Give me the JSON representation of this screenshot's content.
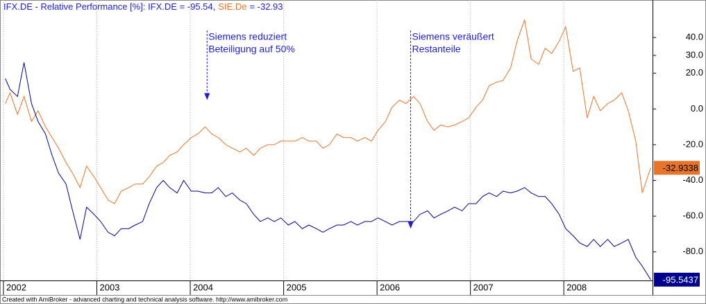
{
  "chart_data": {
    "type": "line",
    "title_parts": [
      {
        "text": "IFX.DE - Relative Performance [%]: IFX.DE = -95.54,",
        "color": "#1f1fd0"
      },
      {
        "text": "SIE.De",
        "color": "#e8742a"
      },
      {
        "text": "= -32.93",
        "color": "#1f1fd0"
      }
    ],
    "footer": "Created with AmiBroker - advanced charting and technical analysis software. http://www.amibroker.com",
    "annotations": [
      {
        "lines": [
          "Siemens reduziert",
          "Beteiligung auf 50%"
        ],
        "x": 2004.18,
        "y": 5
      },
      {
        "lines": [
          "Siemens veräußert",
          "Restanteile"
        ],
        "x": 2006.36,
        "y": -67
      }
    ],
    "x": [
      2002.02,
      2002.07,
      2002.15,
      2002.22,
      2002.3,
      2002.37,
      2002.45,
      2002.52,
      2002.59,
      2002.67,
      2002.74,
      2002.82,
      2002.89,
      2002.97,
      2003.04,
      2003.12,
      2003.19,
      2003.26,
      2003.34,
      2003.41,
      2003.49,
      2003.56,
      2003.64,
      2003.71,
      2003.78,
      2003.86,
      2003.93,
      2004.01,
      2004.08,
      2004.16,
      2004.23,
      2004.3,
      2004.38,
      2004.45,
      2004.53,
      2004.6,
      2004.68,
      2004.75,
      2004.83,
      2004.9,
      2004.97,
      2005.05,
      2005.12,
      2005.2,
      2005.27,
      2005.35,
      2005.42,
      2005.49,
      2005.57,
      2005.64,
      2005.72,
      2005.79,
      2005.87,
      2005.94,
      2006.01,
      2006.09,
      2006.16,
      2006.24,
      2006.31,
      2006.39,
      2006.46,
      2006.54,
      2006.61,
      2006.68,
      2006.76,
      2006.83,
      2006.91,
      2006.98,
      2007.06,
      2007.13,
      2007.2,
      2007.28,
      2007.35,
      2007.43,
      2007.5,
      2007.58,
      2007.65,
      2007.73,
      2007.8,
      2007.87,
      2007.95,
      2008.02,
      2008.1,
      2008.17,
      2008.25,
      2008.32,
      2008.39,
      2008.47,
      2008.54,
      2008.62,
      2008.69,
      2008.77,
      2008.84,
      2008.93
    ],
    "series": [
      {
        "name": "SIE.De",
        "color": "#e8742a",
        "last_value": -32.9338,
        "values": [
          3,
          9,
          -3,
          7,
          -7,
          -1,
          -10,
          -16,
          -22,
          -30,
          -36,
          -44,
          -32,
          -38,
          -44,
          -51,
          -53,
          -46,
          -44,
          -42,
          -42,
          -38,
          -32,
          -30,
          -26,
          -24,
          -20,
          -16,
          -14,
          -10,
          -14,
          -16,
          -20,
          -22,
          -24,
          -22,
          -26,
          -22,
          -20,
          -20,
          -18,
          -18,
          -18,
          -16,
          -18,
          -18,
          -22,
          -20,
          -14,
          -16,
          -16,
          -18,
          -16,
          -18,
          -12,
          -7,
          1,
          5,
          3,
          7,
          3,
          -7,
          -12,
          -9,
          -10,
          -9,
          -7,
          -5,
          1,
          5,
          13,
          15,
          16,
          23,
          38,
          50,
          28,
          25,
          34,
          31,
          38,
          46,
          21,
          23,
          -5,
          7,
          -1,
          3,
          5,
          9,
          -1,
          -18,
          -47,
          -32.9338
        ]
      },
      {
        "name": "IFX.DE",
        "color": "#00008f",
        "last_value": -95.5437,
        "values": [
          17,
          11,
          7,
          26,
          3,
          -7,
          -14,
          -26,
          -36,
          -42,
          -57,
          -73,
          -55,
          -59,
          -63,
          -69,
          -71,
          -67,
          -67,
          -65,
          -63,
          -53,
          -44,
          -40,
          -44,
          -47,
          -40,
          -46,
          -46,
          -47,
          -47,
          -44,
          -49,
          -47,
          -51,
          -53,
          -59,
          -63,
          -61,
          -63,
          -61,
          -65,
          -63,
          -67,
          -65,
          -67,
          -69,
          -67,
          -65,
          -65,
          -63,
          -65,
          -63,
          -63,
          -61,
          -63,
          -65,
          -63,
          -63,
          -63,
          -59,
          -57,
          -61,
          -59,
          -57,
          -55,
          -57,
          -53,
          -53,
          -49,
          -47,
          -49,
          -46,
          -47,
          -46,
          -44,
          -47,
          -49,
          -49,
          -53,
          -59,
          -67,
          -71,
          -75,
          -77,
          -73,
          -77,
          -73,
          -77,
          -75,
          -73,
          -83,
          -88,
          -95.5437
        ]
      }
    ],
    "xlim": [
      2002,
      2008.95
    ],
    "xticks": [
      2002,
      2003,
      2004,
      2005,
      2006,
      2007,
      2008
    ],
    "ylim": [
      -96,
      61
    ],
    "yticks": [
      {
        "value": 40,
        "label": "40.0"
      },
      {
        "value": 30,
        "label": "30.0"
      },
      {
        "value": 20,
        "label": "20.0"
      },
      {
        "value": 0,
        "label": "0.0"
      },
      {
        "value": -20,
        "label": "-20.0"
      },
      {
        "value": -40,
        "label": "-40.0"
      },
      {
        "value": -60,
        "label": "-60.0"
      },
      {
        "value": -80,
        "label": "-80.0"
      }
    ],
    "grid": true
  }
}
